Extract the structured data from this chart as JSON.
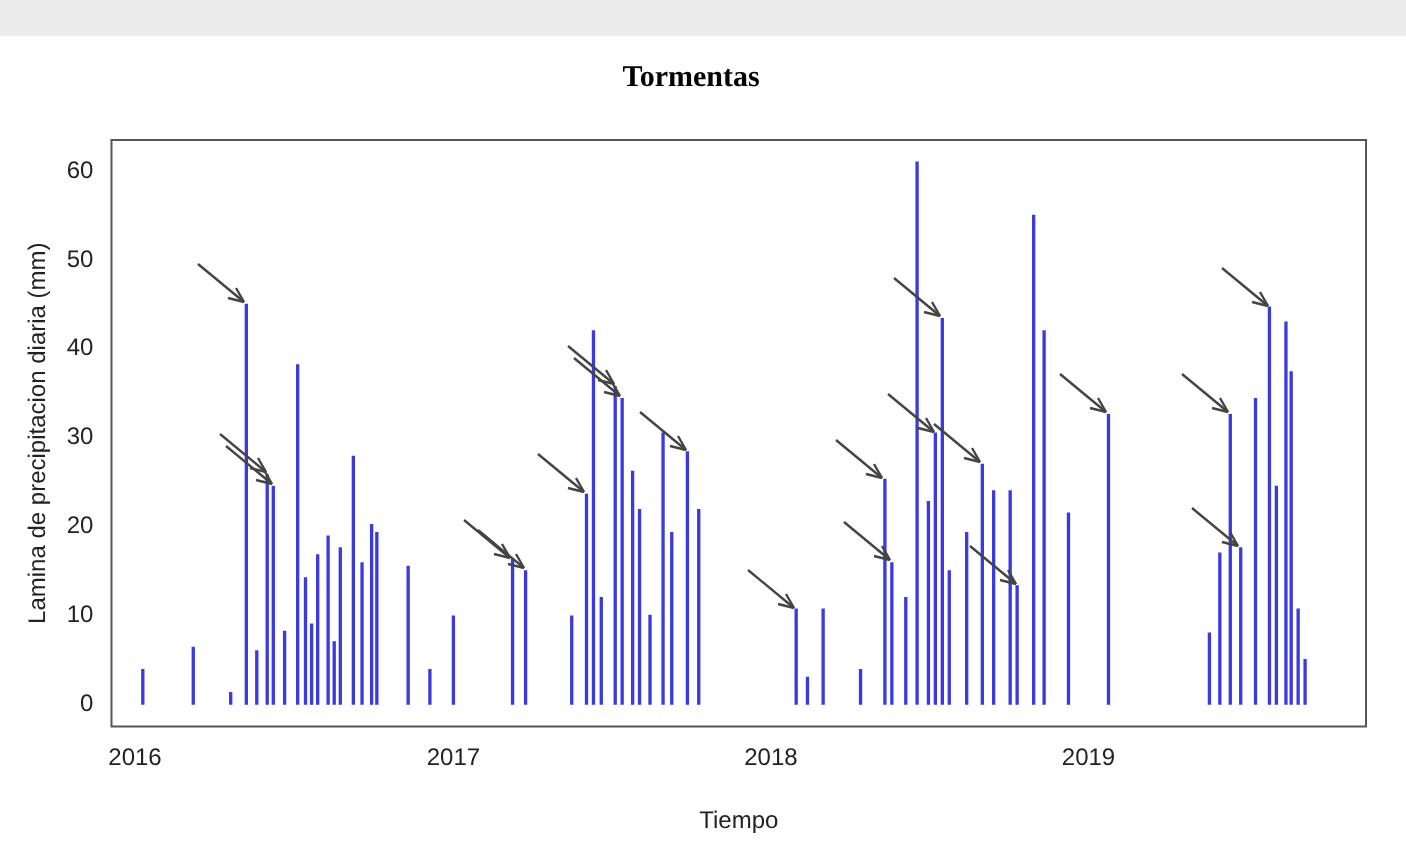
{
  "chart_data": {
    "type": "bar",
    "title": "Tormentas",
    "xlabel": "Tiempo",
    "ylabel": "Lamina de precipitacion diaria (mm)",
    "x": [
      "2016-01-10",
      "2016-03-08",
      "2016-04-20",
      "2016-05-08",
      "2016-05-20",
      "2016-06-01",
      "2016-06-08",
      "2016-06-21",
      "2016-07-06",
      "2016-07-15",
      "2016-07-22",
      "2016-07-29",
      "2016-08-10",
      "2016-08-17",
      "2016-08-24",
      "2016-09-08",
      "2016-09-18",
      "2016-09-29",
      "2016-10-05",
      "2016-11-10",
      "2016-12-05",
      "2017-01-01",
      "2017-03-10",
      "2017-03-25",
      "2017-05-17",
      "2017-06-03",
      "2017-06-11",
      "2017-06-20",
      "2017-07-06",
      "2017-07-14",
      "2017-07-26",
      "2017-08-03",
      "2017-08-15",
      "2017-08-30",
      "2017-09-09",
      "2017-09-27",
      "2017-10-10",
      "2018-01-30",
      "2018-02-12",
      "2018-03-02",
      "2018-04-14",
      "2018-05-12",
      "2018-05-20",
      "2018-06-05",
      "2018-06-18",
      "2018-07-01",
      "2018-07-09",
      "2018-07-17",
      "2018-07-25",
      "2018-08-14",
      "2018-09-01",
      "2018-09-14",
      "2018-10-03",
      "2018-10-11",
      "2018-10-30",
      "2018-11-11",
      "2018-12-09",
      "2019-01-24",
      "2019-05-20",
      "2019-06-01",
      "2019-06-13",
      "2019-06-25",
      "2019-07-12",
      "2019-07-28",
      "2019-08-05",
      "2019-08-16",
      "2019-08-22",
      "2019-08-30",
      "2019-09-07"
    ],
    "values": [
      3.9,
      6.4,
      1.3,
      45,
      6,
      25.8,
      24.5,
      8.2,
      38.2,
      14.2,
      9,
      16.8,
      18.9,
      7,
      17.6,
      27.9,
      15.9,
      20.2,
      19.3,
      15.5,
      3.9,
      9.9,
      16.3,
      15,
      9.9,
      23.6,
      42,
      12,
      35.7,
      34.4,
      26.2,
      21.9,
      10,
      30.5,
      19.3,
      28.4,
      21.9,
      10.7,
      3,
      10.7,
      3.9,
      25.3,
      15.9,
      12,
      61,
      22.8,
      30.5,
      43.4,
      15,
      19.3,
      27,
      24,
      24,
      13.3,
      55,
      42,
      21.5,
      32.6,
      8,
      17,
      32.6,
      17.6,
      34.4,
      44.7,
      24.5,
      43,
      37.4,
      10.7,
      5
    ],
    "color": "#3a3ae0",
    "xlim": [
      "2015-12-05",
      "2019-11-16"
    ],
    "xticks": [
      "2016",
      "2017",
      "2018",
      "2019"
    ],
    "ylim": [
      -2.5,
      63.5
    ],
    "yticks": [
      0,
      10,
      20,
      30,
      40,
      50,
      60
    ],
    "grid": false,
    "legend": false
  }
}
